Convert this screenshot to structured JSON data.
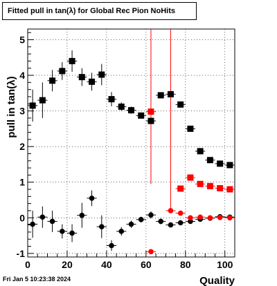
{
  "title": "Fitted pull in tan(λ) for Global Rec Pion NoHits",
  "footer_date": "Fri Jan  5 10:23:38 2024",
  "chart_data": {
    "type": "scatter",
    "xlabel": "Quality",
    "ylabel": "pull in tan(λ)",
    "xlim": [
      0,
      105
    ],
    "ylim": [
      -1.1,
      5.3
    ],
    "xticks": [
      0,
      20,
      40,
      60,
      80,
      100
    ],
    "yticks": [
      -1,
      0,
      1,
      2,
      3,
      4,
      5
    ],
    "grid": true,
    "colors": {
      "black": "#000000",
      "red": "#ff0000"
    },
    "vertical_lines": [
      {
        "x": 62.5,
        "y_from": 0.95,
        "y_to": 5.3,
        "color": "#ff0000"
      },
      {
        "x": 72.5,
        "y_from": 0.18,
        "y_to": 5.3,
        "color": "#ff0000"
      }
    ],
    "series": [
      {
        "marker": "square",
        "color": "#000000",
        "points": [
          {
            "x": 2.5,
            "y": 3.15,
            "xerr": 2.5,
            "yerr": 0.45
          },
          {
            "x": 7.5,
            "y": 3.3,
            "xerr": 2.5,
            "yerr": 0.5
          },
          {
            "x": 12.5,
            "y": 3.85,
            "xerr": 2.5,
            "yerr": 0.3
          },
          {
            "x": 17.5,
            "y": 4.12,
            "xerr": 2.5,
            "yerr": 0.25
          },
          {
            "x": 22.5,
            "y": 4.4,
            "xerr": 2.5,
            "yerr": 0.3
          },
          {
            "x": 27.5,
            "y": 3.95,
            "xerr": 2.5,
            "yerr": 0.25
          },
          {
            "x": 32.5,
            "y": 3.82,
            "xerr": 2.5,
            "yerr": 0.25
          },
          {
            "x": 37.5,
            "y": 4.02,
            "xerr": 2.5,
            "yerr": 0.3
          },
          {
            "x": 42.5,
            "y": 3.33,
            "xerr": 2.5,
            "yerr": 0.2
          },
          {
            "x": 47.5,
            "y": 3.12,
            "xerr": 2.5,
            "yerr": 0.12
          },
          {
            "x": 52.5,
            "y": 3.02,
            "xerr": 2.5,
            "yerr": 0.1
          },
          {
            "x": 57.5,
            "y": 2.87,
            "xerr": 2.5,
            "yerr": 0.08
          },
          {
            "x": 62.5,
            "y": 2.72,
            "xerr": 2.5,
            "yerr": 0.08
          },
          {
            "x": 67.5,
            "y": 3.44,
            "xerr": 2.5,
            "yerr": 0.08
          },
          {
            "x": 72.5,
            "y": 3.47,
            "xerr": 2.5,
            "yerr": 0.06
          },
          {
            "x": 77.5,
            "y": 3.18,
            "xerr": 2.5,
            "yerr": 0.05
          },
          {
            "x": 82.5,
            "y": 2.5,
            "xerr": 2.5,
            "yerr": 0.04
          },
          {
            "x": 87.5,
            "y": 1.87,
            "xerr": 2.5,
            "yerr": 0.03
          },
          {
            "x": 92.5,
            "y": 1.62,
            "xerr": 2.5,
            "yerr": 0.03
          },
          {
            "x": 97.5,
            "y": 1.52,
            "xerr": 2.5,
            "yerr": 0.03
          },
          {
            "x": 102.5,
            "y": 1.48,
            "xerr": 2.5,
            "yerr": 0.03
          }
        ]
      },
      {
        "marker": "circle",
        "color": "#000000",
        "points": [
          {
            "x": 2.5,
            "y": -0.18,
            "xerr": 2.5,
            "yerr": 0.38
          },
          {
            "x": 7.5,
            "y": 0.02,
            "xerr": 2.5,
            "yerr": 0.3
          },
          {
            "x": 12.5,
            "y": -0.1,
            "xerr": 2.5,
            "yerr": 0.3
          },
          {
            "x": 17.5,
            "y": -0.38,
            "xerr": 2.5,
            "yerr": 0.2
          },
          {
            "x": 22.5,
            "y": -0.43,
            "xerr": 2.5,
            "yerr": 0.25
          },
          {
            "x": 27.5,
            "y": 0.07,
            "xerr": 2.5,
            "yerr": 0.35
          },
          {
            "x": 32.5,
            "y": 0.55,
            "xerr": 2.5,
            "yerr": 0.22
          },
          {
            "x": 37.5,
            "y": -0.25,
            "xerr": 2.5,
            "yerr": 0.32
          },
          {
            "x": 42.5,
            "y": -0.78,
            "xerr": 2.5,
            "yerr": 0.15
          },
          {
            "x": 47.5,
            "y": -0.38,
            "xerr": 2.5,
            "yerr": 0.12
          },
          {
            "x": 52.5,
            "y": -0.18,
            "xerr": 2.5,
            "yerr": 0.1
          },
          {
            "x": 57.5,
            "y": -0.05,
            "xerr": 2.5,
            "yerr": 0.08
          },
          {
            "x": 62.5,
            "y": 0.08,
            "xerr": 2.5,
            "yerr": 0.1
          },
          {
            "x": 67.5,
            "y": -0.1,
            "xerr": 2.5,
            "yerr": 0.08
          },
          {
            "x": 72.5,
            "y": -0.2,
            "xerr": 2.5,
            "yerr": 0.06
          },
          {
            "x": 77.5,
            "y": -0.14,
            "xerr": 2.5,
            "yerr": 0.05
          },
          {
            "x": 82.5,
            "y": -0.1,
            "xerr": 2.5,
            "yerr": 0.04
          },
          {
            "x": 87.5,
            "y": -0.04,
            "xerr": 2.5,
            "yerr": 0.03
          },
          {
            "x": 92.5,
            "y": -0.01,
            "xerr": 2.5,
            "yerr": 0.03
          },
          {
            "x": 97.5,
            "y": 0.03,
            "xerr": 2.5,
            "yerr": 0.03
          },
          {
            "x": 102.5,
            "y": 0.02,
            "xerr": 2.5,
            "yerr": 0.03
          }
        ]
      },
      {
        "marker": "square",
        "color": "#ff0000",
        "points": [
          {
            "x": 62.5,
            "y": 2.98,
            "xerr": 2.5,
            "yerr": 0.06
          },
          {
            "x": 77.5,
            "y": 0.82,
            "xerr": 2.5,
            "yerr": 0.08
          },
          {
            "x": 82.5,
            "y": 1.13,
            "xerr": 2.5,
            "yerr": 0.06
          },
          {
            "x": 87.5,
            "y": 0.95,
            "xerr": 2.5,
            "yerr": 0.04
          },
          {
            "x": 92.5,
            "y": 0.89,
            "xerr": 2.5,
            "yerr": 0.03
          },
          {
            "x": 97.5,
            "y": 0.83,
            "xerr": 2.5,
            "yerr": 0.03
          },
          {
            "x": 102.5,
            "y": 0.8,
            "xerr": 2.5,
            "yerr": 0.03
          }
        ]
      },
      {
        "marker": "circle",
        "color": "#ff0000",
        "points": [
          {
            "x": 62.5,
            "y": -0.95,
            "xerr": 2.5,
            "yerr": 0.05
          },
          {
            "x": 72.5,
            "y": 0.2,
            "xerr": 2.5,
            "yerr": 0.06
          },
          {
            "x": 77.5,
            "y": 0.13,
            "xerr": 2.5,
            "yerr": 0.06
          },
          {
            "x": 82.5,
            "y": 0.0,
            "xerr": 2.5,
            "yerr": 0.04
          },
          {
            "x": 87.5,
            "y": 0.02,
            "xerr": 2.5,
            "yerr": 0.03
          },
          {
            "x": 92.5,
            "y": 0.0,
            "xerr": 2.5,
            "yerr": 0.03
          },
          {
            "x": 97.5,
            "y": 0.01,
            "xerr": 2.5,
            "yerr": 0.03
          },
          {
            "x": 102.5,
            "y": 0.0,
            "xerr": 2.5,
            "yerr": 0.03
          }
        ]
      }
    ]
  }
}
